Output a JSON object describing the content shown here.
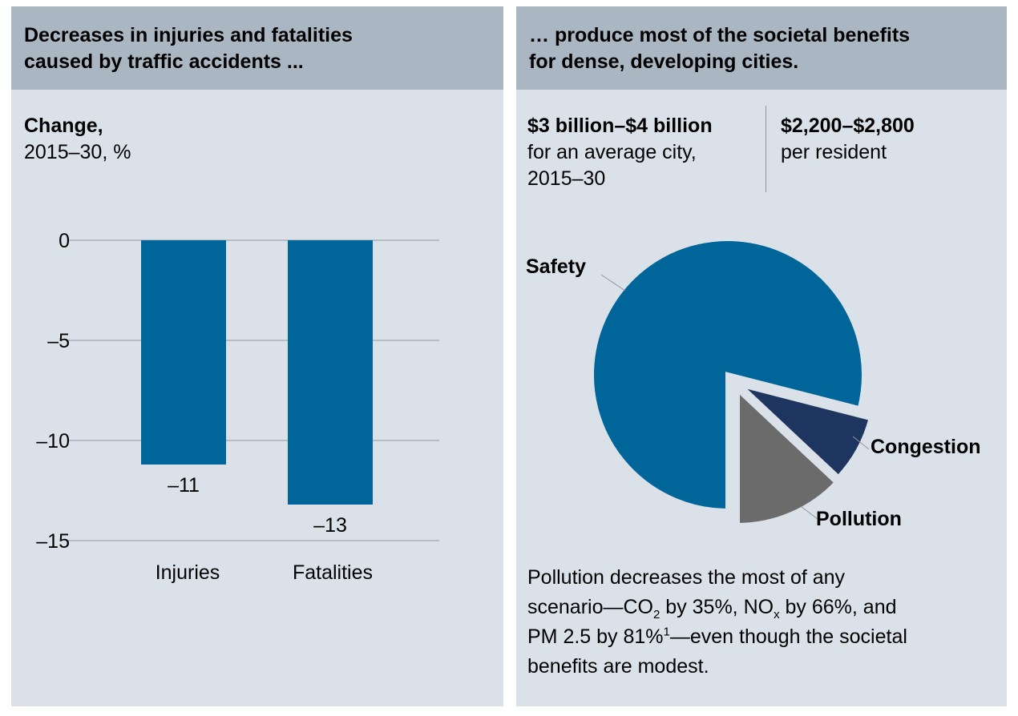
{
  "left_panel": {
    "header_line1": "Decreases in injuries and fatalities",
    "header_line2": "caused by traffic accidents ...",
    "subtitle_bold": "Change,",
    "subtitle_rest": "2015–30, %"
  },
  "right_panel": {
    "header_line1": "… produce most of the societal benefits",
    "header_line2": "for dense, developing cities.",
    "stat_left_value": "$3 billion–$4 billion",
    "stat_left_desc1": "for an average city,",
    "stat_left_desc2": "2015–30",
    "stat_right_value": "$2,200–$2,800",
    "stat_right_desc": "per resident",
    "footnote": {
      "p1": "Pollution decreases the most of any",
      "p2": "scenario",
      "dash": "—",
      "co": "CO",
      "co_sub": "2",
      "p3": " by 35%, NO",
      "no_sub": "x",
      "p4": " by 66%, and",
      "p5": "PM 2.5 by 81%",
      "sup": "1",
      "p6": "even though the societal",
      "p7": "benefits are modest."
    }
  },
  "colors": {
    "bar": "#006699",
    "safety": "#006699",
    "congestion": "#1e3560",
    "pollution": "#6b6b6b",
    "grid": "#8e98a2",
    "panel_bg": "#dbe1e8",
    "header_bg": "#aab7c3"
  },
  "chart_data": [
    {
      "type": "bar",
      "categories": [
        "Injuries",
        "Fatalities"
      ],
      "values": [
        -11.2,
        -13.2
      ],
      "value_labels": [
        "–11",
        "–13"
      ],
      "ylim": [
        -15,
        0
      ],
      "yticks": [
        0,
        -5,
        -10,
        -15
      ],
      "ytick_labels": [
        "0",
        "–5",
        "–10",
        "–15"
      ],
      "grid": true
    },
    {
      "type": "pie",
      "slices": [
        {
          "label": "Safety",
          "value": 79
        },
        {
          "label": "Congestion",
          "value": 8
        },
        {
          "label": "Pollution",
          "value": 13
        }
      ],
      "exploded": true
    }
  ]
}
